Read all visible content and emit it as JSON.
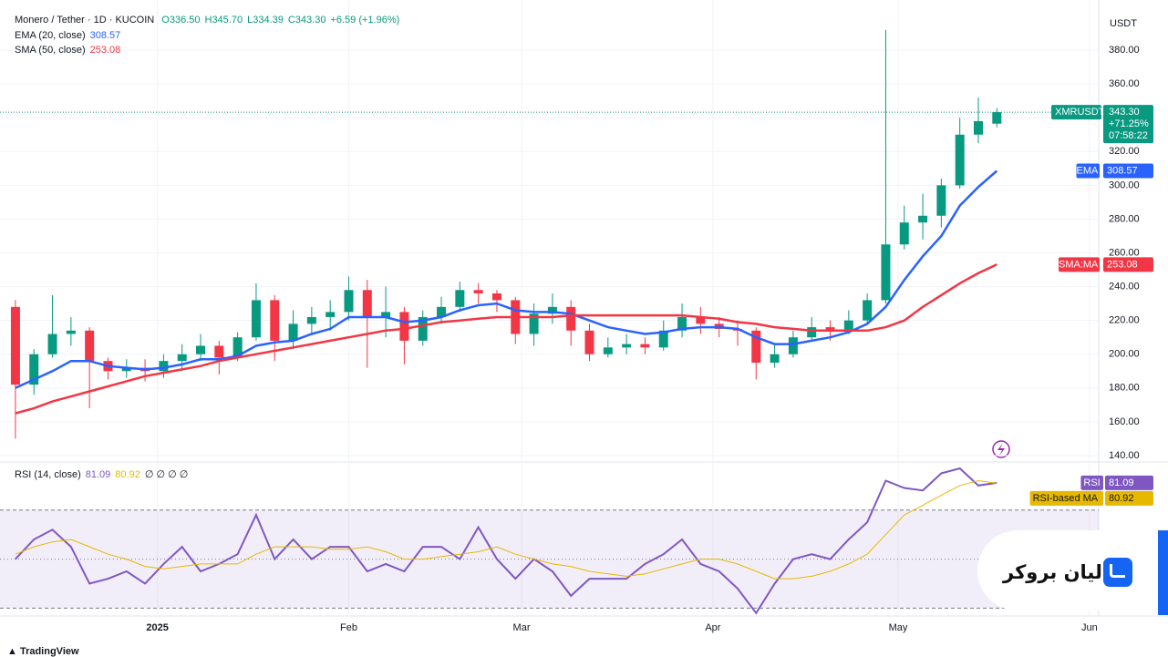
{
  "chart_data": [
    {
      "type": "candlestick",
      "title": "Monero / Tether · 1D · KUCOIN",
      "ohlc_labels": [
        "O336.50",
        "H345.70",
        "L334.39",
        "C343.30"
      ],
      "change_label": "+6.59 (+1.96%)",
      "symbol": "XMRUSDT",
      "last_price_label": "343.30",
      "change_pct_label": "+71.25%",
      "countdown": "07:58:22",
      "currency": "USDT",
      "up_color": "#089981",
      "down_color": "#f23645",
      "x": [
        1,
        4,
        7,
        10,
        13,
        16,
        19,
        22,
        25,
        28,
        31,
        34,
        37,
        40,
        43,
        46,
        49,
        52,
        55,
        58,
        61,
        64,
        67,
        70,
        73,
        76,
        79,
        82,
        85,
        88,
        91,
        94,
        97,
        100,
        103,
        106,
        109,
        112,
        115,
        118,
        121,
        124,
        127,
        130,
        133,
        136,
        139,
        142,
        145,
        148,
        151,
        154,
        157,
        160
      ],
      "open": [
        228,
        182,
        200,
        212,
        214,
        196,
        190,
        192,
        190,
        196,
        200,
        205,
        198,
        210,
        232,
        208,
        218,
        222,
        225,
        238,
        222,
        225,
        208,
        222,
        228,
        238,
        236,
        232,
        212,
        224,
        228,
        214,
        200,
        204,
        206,
        204,
        214,
        222,
        218,
        215,
        214,
        195,
        200,
        210,
        216,
        214,
        220,
        232,
        265,
        278,
        282,
        300,
        330,
        336.5
      ],
      "high": [
        232,
        203,
        235,
        222,
        216,
        198,
        197,
        197,
        200,
        206,
        212,
        208,
        213,
        242,
        235,
        226,
        228,
        232,
        246,
        244,
        240,
        228,
        226,
        234,
        243,
        242,
        238,
        234,
        230,
        236,
        232,
        218,
        210,
        212,
        210,
        220,
        230,
        228,
        222,
        220,
        216,
        206,
        214,
        222,
        220,
        226,
        236,
        392,
        288,
        295,
        304,
        340,
        352,
        345.7
      ],
      "low": [
        150,
        176,
        198,
        205,
        168,
        185,
        186,
        184,
        186,
        190,
        196,
        188,
        196,
        208,
        196,
        203,
        212,
        214,
        220,
        192,
        210,
        194,
        205,
        218,
        225,
        230,
        225,
        206,
        205,
        218,
        205,
        196,
        198,
        200,
        200,
        202,
        210,
        212,
        210,
        205,
        185,
        192,
        198,
        208,
        208,
        212,
        218,
        230,
        262,
        268,
        275,
        298,
        325,
        334.39
      ],
      "close": [
        182,
        200,
        212,
        214,
        196,
        190,
        192,
        190,
        196,
        200,
        205,
        198,
        210,
        232,
        208,
        218,
        222,
        225,
        238,
        222,
        225,
        208,
        222,
        228,
        238,
        236,
        232,
        212,
        224,
        228,
        214,
        200,
        204,
        206,
        204,
        214,
        222,
        218,
        215,
        214,
        195,
        200,
        210,
        216,
        214,
        220,
        232,
        265,
        278,
        282,
        300,
        330,
        338,
        343.3
      ],
      "overlays": [
        {
          "name": "EMA (20, close)",
          "tag": "EMA",
          "color": "#2962ff",
          "value_label": "308.57",
          "values": [
            180,
            185,
            190,
            196,
            196,
            193,
            192,
            191,
            192,
            194,
            197,
            197,
            199,
            205,
            207,
            208,
            212,
            215,
            222,
            222,
            222,
            219,
            220,
            222,
            226,
            229,
            230,
            226,
            225,
            225,
            224,
            220,
            216,
            214,
            212,
            213,
            215,
            216,
            216,
            215,
            210,
            206,
            206,
            208,
            210,
            213,
            218,
            228,
            244,
            258,
            270,
            288,
            299,
            308.57
          ]
        },
        {
          "name": "SMA (50, close)",
          "tag": "SMA:MA",
          "color": "#f23645",
          "value_label": "253.08",
          "values": [
            165,
            168,
            172,
            175,
            178,
            181,
            184,
            187,
            189,
            191,
            193,
            196,
            198,
            200,
            202,
            204,
            206,
            208,
            210,
            212,
            214,
            215,
            217,
            219,
            220,
            221,
            222,
            222,
            222,
            222,
            223,
            223,
            223,
            223,
            223,
            223,
            223,
            222,
            221,
            219,
            218,
            216,
            215,
            214,
            214,
            214,
            214,
            216,
            220,
            228,
            235,
            242,
            248,
            253.08
          ]
        }
      ],
      "xlim": [
        -1.5,
        176.5
      ],
      "ylim": [
        136.2,
        405.4
      ],
      "xticks": [
        {
          "value": 24,
          "label": "2025"
        },
        {
          "value": 55,
          "label": "Feb"
        },
        {
          "value": 83,
          "label": "Mar"
        },
        {
          "value": 114,
          "label": "Apr"
        },
        {
          "value": 144,
          "label": "May"
        },
        {
          "value": 175,
          "label": "Jun"
        }
      ],
      "yticks": [
        {
          "value": 140,
          "label": "140.00"
        },
        {
          "value": 160,
          "label": "160.00"
        },
        {
          "value": 180,
          "label": "180.00"
        },
        {
          "value": 200,
          "label": "200.00"
        },
        {
          "value": 220,
          "label": "220.00"
        },
        {
          "value": 240,
          "label": "240.00"
        },
        {
          "value": 260,
          "label": "260.00"
        },
        {
          "value": 280,
          "label": "280.00"
        },
        {
          "value": 300,
          "label": "300.00"
        },
        {
          "value": 320,
          "label": "320.00"
        },
        {
          "value": 340,
          "label": "340.00"
        },
        {
          "value": 360,
          "label": "360.00"
        },
        {
          "value": 380,
          "label": "380.00"
        }
      ],
      "grid": true
    },
    {
      "type": "line",
      "title": "RSI (14, close)",
      "na_labels": "∅ ∅ ∅ ∅",
      "x": [
        1,
        4,
        7,
        10,
        13,
        16,
        19,
        22,
        25,
        28,
        31,
        34,
        37,
        40,
        43,
        46,
        49,
        52,
        55,
        58,
        61,
        64,
        67,
        70,
        73,
        76,
        79,
        82,
        85,
        88,
        91,
        94,
        97,
        100,
        103,
        106,
        109,
        112,
        115,
        118,
        121,
        124,
        127,
        130,
        133,
        136,
        139,
        142,
        145,
        148,
        151,
        154,
        157,
        160
      ],
      "series": [
        {
          "name": "RSI",
          "color": "#7e57c2",
          "value_label": "81.09",
          "values": [
            50,
            58,
            62,
            55,
            40,
            42,
            45,
            40,
            48,
            55,
            45,
            48,
            52,
            68,
            50,
            58,
            50,
            55,
            55,
            45,
            48,
            45,
            55,
            55,
            50,
            63,
            50,
            42,
            50,
            45,
            35,
            42,
            42,
            42,
            48,
            52,
            58,
            48,
            45,
            38,
            28,
            40,
            50,
            52,
            50,
            58,
            65,
            82,
            79,
            78,
            85,
            87,
            80,
            81.09
          ]
        },
        {
          "name": "RSI-based MA",
          "color": "#e6b800",
          "value_label": "80.92",
          "values": [
            52,
            55,
            57,
            58,
            55,
            52,
            50,
            47,
            46,
            47,
            48,
            48,
            48,
            52,
            55,
            55,
            55,
            54,
            54,
            55,
            53,
            50,
            50,
            51,
            52,
            53,
            55,
            52,
            50,
            48,
            47,
            45,
            44,
            43,
            44,
            46,
            48,
            50,
            50,
            48,
            45,
            42,
            42,
            43,
            45,
            48,
            52,
            60,
            68,
            72,
            76,
            80,
            82,
            80.92
          ]
        }
      ],
      "levels": [
        70,
        50,
        30
      ],
      "xlim": [
        -1.5,
        176.5
      ],
      "ylim": [
        26.8,
        89.6
      ]
    }
  ],
  "watermark": "لیان بروکر",
  "footer": "TradingView"
}
